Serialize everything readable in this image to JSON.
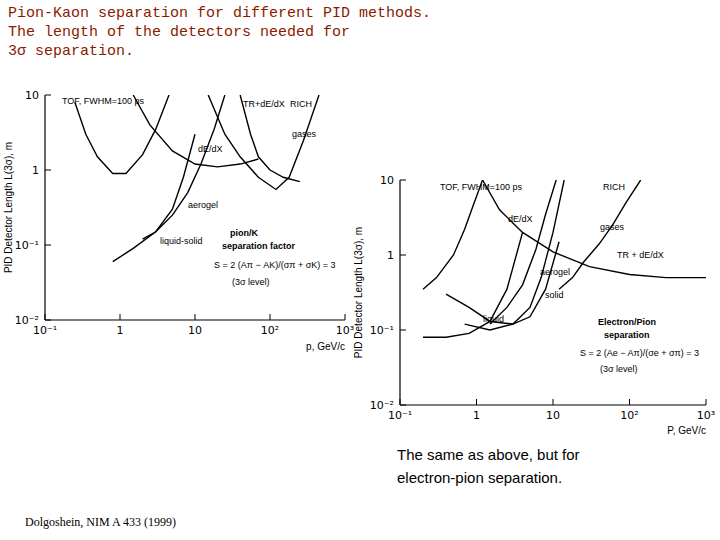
{
  "title_lines": [
    "Pion-Kaon separation for different PID methods.",
    "The length of the detectors needed for",
    "3σ separation."
  ],
  "caption_lines": [
    "The same as above, but for",
    "electron-pion separation."
  ],
  "source": "Dolgoshein, NIM A 433 (1999)",
  "chart_data": [
    {
      "type": "line",
      "log": true,
      "grid": false,
      "x_label": "p, GeV/c",
      "y_label": "PID Detector Length L(3σ), m",
      "xlim": [
        0.1,
        1000
      ],
      "ylim": [
        0.01,
        10
      ],
      "xticks": [
        {
          "value": 0.1,
          "label": "10⁻¹"
        },
        1,
        10,
        {
          "value": 100,
          "label": "10²"
        },
        {
          "value": 1000,
          "label": "10³"
        }
      ],
      "yticks": [
        {
          "value": 0.01,
          "label": "10⁻²"
        },
        {
          "value": 0.1,
          "label": "10⁻¹"
        },
        1,
        10
      ],
      "annotations": [
        "RICH",
        "pion/K",
        "separation factor",
        "S = 2 (Aπ − AK)/(σπ + σK) = 3",
        "(3σ level)"
      ],
      "series": [
        {
          "name": "TOF, FWHM=100 ps",
          "color": "#000000",
          "x": [
            0.25,
            0.35,
            0.5,
            0.8,
            1.2,
            2,
            3,
            4.5
          ],
          "values": [
            8,
            3,
            1.5,
            0.9,
            0.9,
            1.6,
            3.5,
            10
          ]
        },
        {
          "name": "TR+dE/dX",
          "color": "#000000",
          "x": [
            40,
            55,
            70,
            100,
            150,
            250
          ],
          "values": [
            10,
            3,
            1.5,
            1,
            0.8,
            0.7
          ]
        },
        {
          "name": "gases",
          "color": "#000000",
          "x": [
            15,
            25,
            40,
            70,
            120,
            180,
            280,
            450
          ],
          "values": [
            10,
            3,
            1.5,
            0.8,
            0.55,
            0.8,
            2.5,
            10
          ]
        },
        {
          "name": "dE/dX",
          "color": "#000000",
          "x": [
            1.5,
            2.5,
            5,
            10,
            20,
            40,
            70
          ],
          "values": [
            10,
            4,
            1.8,
            1.2,
            1.1,
            1.2,
            1.4
          ]
        },
        {
          "name": "aerogel",
          "color": "#000000",
          "x": [
            2,
            3,
            5,
            8,
            12,
            18,
            25
          ],
          "values": [
            0.12,
            0.15,
            0.25,
            0.5,
            1.2,
            3.5,
            10
          ]
        },
        {
          "name": "liquid-solid",
          "color": "#000000",
          "x": [
            0.8,
            1.5,
            3,
            5,
            7,
            10
          ],
          "values": [
            0.06,
            0.09,
            0.15,
            0.3,
            0.8,
            3
          ]
        }
      ]
    },
    {
      "type": "line",
      "log": true,
      "grid": false,
      "x_label": "P, GeV/c",
      "y_label": "PID Detector Length L(3σ), m",
      "xlim": [
        0.1,
        1000
      ],
      "ylim": [
        0.01,
        10
      ],
      "xticks": [
        {
          "value": 0.1,
          "label": "10⁻¹"
        },
        1,
        10,
        {
          "value": 100,
          "label": "10²"
        },
        {
          "value": 1000,
          "label": "10³"
        }
      ],
      "yticks": [
        {
          "value": 0.01,
          "label": "10⁻²"
        },
        {
          "value": 0.1,
          "label": "10⁻¹"
        },
        1,
        10
      ],
      "annotations": [
        "RICH",
        "Electron/Pion",
        "separation",
        "S = 2 (Ae − Aπ)/(σe + σπ) = 3",
        "(3σ level)"
      ],
      "series": [
        {
          "name": "TOF, FWHM=100 ps",
          "color": "#000000",
          "x": [
            0.2,
            0.3,
            0.5,
            0.7,
            0.9,
            1.2
          ],
          "values": [
            0.35,
            0.5,
            1,
            2.2,
            4.5,
            10
          ]
        },
        {
          "name": "dE/dX",
          "color": "#000000",
          "x": [
            1.5,
            2.5,
            4,
            6,
            8,
            11
          ],
          "values": [
            0.12,
            0.2,
            0.4,
            1.2,
            3.5,
            10
          ]
        },
        {
          "name": "gases",
          "color": "#000000",
          "x": [
            12,
            18,
            25,
            40,
            60,
            90,
            140
          ],
          "values": [
            0.35,
            0.5,
            0.8,
            1.4,
            2.5,
            5,
            10
          ]
        },
        {
          "name": "TR + dE/dX",
          "color": "#000000",
          "x": [
            1.2,
            2,
            4,
            10,
            30,
            100,
            300,
            1000
          ],
          "values": [
            10,
            4,
            2,
            1.1,
            0.7,
            0.55,
            0.5,
            0.5
          ]
        },
        {
          "name": "aerogel",
          "color": "#000000",
          "x": [
            0.7,
            1.5,
            3,
            5,
            7,
            10,
            14
          ],
          "values": [
            0.12,
            0.1,
            0.12,
            0.2,
            0.5,
            2,
            10
          ]
        },
        {
          "name": "solid",
          "color": "#000000",
          "x": [
            0.4,
            0.8,
            1.5,
            3,
            5,
            8,
            12
          ],
          "values": [
            0.3,
            0.2,
            0.13,
            0.12,
            0.15,
            0.35,
            1.5
          ]
        },
        {
          "name": "liquid",
          "color": "#000000",
          "x": [
            0.2,
            0.4,
            0.8,
            1.5,
            2.5,
            4
          ],
          "values": [
            0.08,
            0.08,
            0.09,
            0.13,
            0.35,
            2
          ]
        }
      ]
    }
  ]
}
